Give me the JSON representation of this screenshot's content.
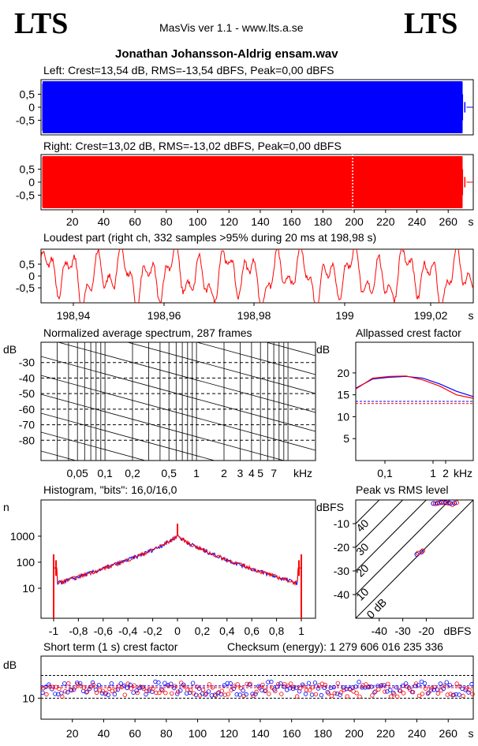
{
  "header": {
    "logo_left": "LTS",
    "logo_right": "LTS",
    "app_title": "MasVis ver 1.1 - www.lts.a.se",
    "filename": "Jonathan Johansson-Aldrig ensam.wav"
  },
  "colors": {
    "left": "#0000ff",
    "right": "#ff0000"
  },
  "chart_data": [
    {
      "type": "line",
      "title": "Left: Crest=13,54 dB, RMS=-13,54 dBFS, Peak=0,00 dBFS",
      "yticks": [
        "0.5",
        "0",
        "-0.5"
      ],
      "ylim": [
        -1,
        1
      ],
      "duration_s": 276
    },
    {
      "type": "line",
      "title": "Right: Crest=13,02 dB, RMS=-13,02 dBFS, Peak=0,00 dBFS",
      "yticks": [
        "0.5",
        "0",
        "-0.5"
      ],
      "xticks": [
        "20",
        "40",
        "60",
        "80",
        "100",
        "120",
        "140",
        "160",
        "180",
        "200",
        "220",
        "240",
        "260"
      ],
      "xunit": "s",
      "marker_s": 198.98
    },
    {
      "type": "line",
      "title": "Loudest part (right ch, 332 samples >95% during 20 ms at 198,98 s)",
      "yticks": [
        "0.5",
        "0",
        "-0.5"
      ],
      "xticks": [
        "198,94",
        "198,96",
        "198,98",
        "199",
        "199,02"
      ],
      "xunit": "s"
    },
    {
      "type": "line",
      "title": "Normalized average spectrum, 287 frames",
      "ylabel": "dB",
      "yticks": [
        "-30",
        "-40",
        "-50",
        "-60",
        "-70",
        "-80"
      ],
      "xticks": [
        "0,05",
        "0,1",
        "0,2",
        "0,5",
        "1",
        "2",
        "3",
        "4",
        "5",
        "7"
      ],
      "xunit": "kHz"
    },
    {
      "type": "line",
      "title": "Allpassed crest factor",
      "ylabel": "dB",
      "yticks": [
        "20",
        "15",
        "10",
        "5"
      ],
      "xticks": [
        "0,1",
        "1",
        "2"
      ],
      "xunit": "kHz",
      "left_curve": [
        16.5,
        18.6,
        19.0,
        19.2,
        18.8,
        17.5,
        15.8,
        14.6
      ],
      "right_curve": [
        16.3,
        18.8,
        19.2,
        19.3,
        18.4,
        17.0,
        15.0,
        14.2
      ],
      "ref_left": 13.5,
      "ref_right": 13.0
    },
    {
      "type": "line",
      "title": "Histogram, \"bits\": 16,0/16,0",
      "ylabel": "n",
      "yticks": [
        "1000",
        "100",
        "10"
      ],
      "xticks": [
        "-1",
        "-0,8",
        "-0,6",
        "-0,4",
        "-0,2",
        "0",
        "0,2",
        "0,4",
        "0,6",
        "0,8",
        "1"
      ]
    },
    {
      "type": "scatter",
      "title": "Peak vs RMS level",
      "ylabel": "dBFS",
      "yticks": [
        "-10",
        "-20",
        "-30",
        "-40"
      ],
      "xticks": [
        "-40",
        "-30",
        "-20"
      ],
      "xunit": "dBFS",
      "diag_labels": [
        "40",
        "30",
        "20",
        "10",
        "0 dB"
      ]
    },
    {
      "type": "scatter",
      "title": "Short term (1 s) crest factor",
      "checksum": "Checksum (energy):  1 279 606 016 235 336",
      "ylabel": "dB",
      "yticks": [
        "10"
      ],
      "xticks": [
        "20",
        "40",
        "60",
        "80",
        "100",
        "120",
        "140",
        "160",
        "180",
        "200",
        "220",
        "240",
        "260"
      ],
      "xunit": "s"
    }
  ]
}
